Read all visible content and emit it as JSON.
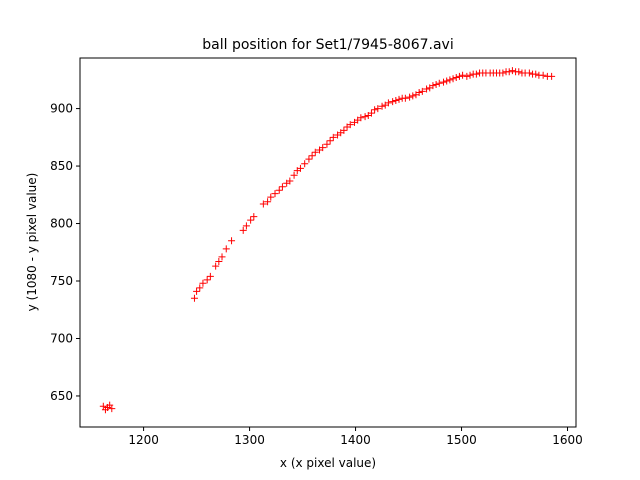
{
  "chart_data": {
    "type": "scatter",
    "title": "ball position for Set1/7945-8067.avi",
    "xlabel": "x (x pixel value)",
    "ylabel": "y (1080 - y pixel value)",
    "marker": "+",
    "color": "#ff0000",
    "xlim": [
      1140,
      1608
    ],
    "ylim": [
      623,
      944
    ],
    "xticks": [
      1200,
      1300,
      1400,
      1500,
      1600
    ],
    "yticks": [
      650,
      700,
      750,
      800,
      850,
      900
    ],
    "grid": false,
    "legend": "none",
    "points": [
      [
        1162,
        641
      ],
      [
        1164,
        638
      ],
      [
        1166,
        640
      ],
      [
        1168,
        642
      ],
      [
        1170,
        639
      ],
      [
        1248,
        735
      ],
      [
        1250,
        741
      ],
      [
        1253,
        744
      ],
      [
        1256,
        748
      ],
      [
        1260,
        751
      ],
      [
        1263,
        754
      ],
      [
        1268,
        763
      ],
      [
        1271,
        767
      ],
      [
        1274,
        771
      ],
      [
        1278,
        778
      ],
      [
        1283,
        785
      ],
      [
        1294,
        794
      ],
      [
        1297,
        798
      ],
      [
        1301,
        803
      ],
      [
        1304,
        806
      ],
      [
        1313,
        817
      ],
      [
        1317,
        819
      ],
      [
        1320,
        823
      ],
      [
        1324,
        826
      ],
      [
        1328,
        829
      ],
      [
        1331,
        832
      ],
      [
        1335,
        835
      ],
      [
        1338,
        837
      ],
      [
        1342,
        842
      ],
      [
        1345,
        846
      ],
      [
        1348,
        848
      ],
      [
        1352,
        852
      ],
      [
        1356,
        856
      ],
      [
        1359,
        859
      ],
      [
        1362,
        862
      ],
      [
        1366,
        864
      ],
      [
        1369,
        866
      ],
      [
        1373,
        869
      ],
      [
        1376,
        872
      ],
      [
        1379,
        875
      ],
      [
        1383,
        877
      ],
      [
        1386,
        879
      ],
      [
        1389,
        881
      ],
      [
        1392,
        884
      ],
      [
        1395,
        886
      ],
      [
        1399,
        888
      ],
      [
        1402,
        890
      ],
      [
        1405,
        892
      ],
      [
        1409,
        893
      ],
      [
        1412,
        894
      ],
      [
        1415,
        896
      ],
      [
        1418,
        899
      ],
      [
        1421,
        900
      ],
      [
        1425,
        902
      ],
      [
        1428,
        903
      ],
      [
        1431,
        905
      ],
      [
        1435,
        906
      ],
      [
        1438,
        907
      ],
      [
        1441,
        908
      ],
      [
        1444,
        909
      ],
      [
        1447,
        909
      ],
      [
        1451,
        910
      ],
      [
        1454,
        911
      ],
      [
        1457,
        912
      ],
      [
        1460,
        914
      ],
      [
        1463,
        915
      ],
      [
        1467,
        917
      ],
      [
        1470,
        918
      ],
      [
        1473,
        920
      ],
      [
        1476,
        921
      ],
      [
        1479,
        922
      ],
      [
        1483,
        923
      ],
      [
        1486,
        924
      ],
      [
        1489,
        925
      ],
      [
        1492,
        926
      ],
      [
        1495,
        927
      ],
      [
        1498,
        928
      ],
      [
        1501,
        929
      ],
      [
        1505,
        928
      ],
      [
        1508,
        929
      ],
      [
        1511,
        930
      ],
      [
        1514,
        930
      ],
      [
        1517,
        931
      ],
      [
        1520,
        931
      ],
      [
        1523,
        931
      ],
      [
        1527,
        931
      ],
      [
        1530,
        931
      ],
      [
        1533,
        931
      ],
      [
        1536,
        931
      ],
      [
        1539,
        931
      ],
      [
        1542,
        932
      ],
      [
        1545,
        932
      ],
      [
        1548,
        933
      ],
      [
        1551,
        932
      ],
      [
        1554,
        932
      ],
      [
        1557,
        931
      ],
      [
        1560,
        931
      ],
      [
        1564,
        931
      ],
      [
        1567,
        930
      ],
      [
        1570,
        930
      ],
      [
        1573,
        929
      ],
      [
        1577,
        929
      ],
      [
        1581,
        928
      ],
      [
        1585,
        928
      ]
    ]
  }
}
